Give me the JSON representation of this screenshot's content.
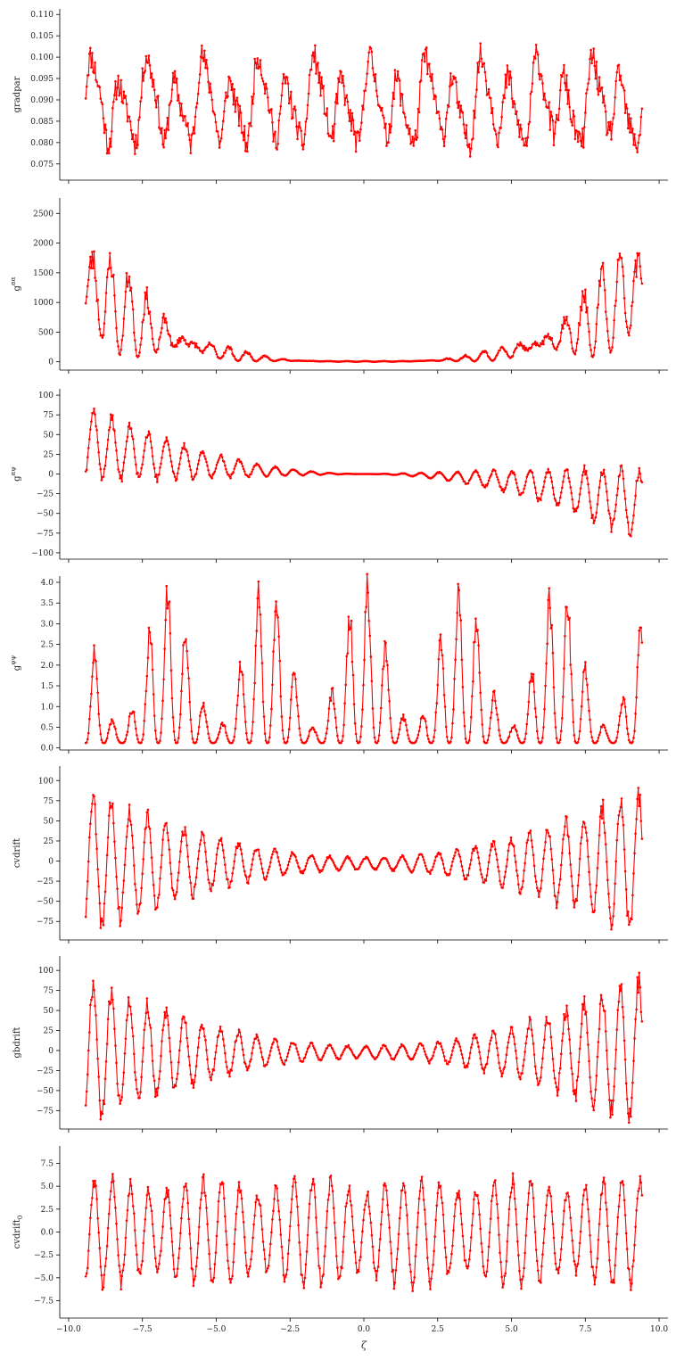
{
  "figure": {
    "xlabel": "ζ",
    "color": "#ff0000"
  },
  "chart_data": [
    {
      "type": "line",
      "ylabel_main": "gradpar",
      "ylabel_sup": "",
      "ylabel_sub": "",
      "xlim": [
        -10.3,
        10.3
      ],
      "ylim": [
        0.0712,
        0.1113
      ],
      "xticks": [
        -10.0,
        -7.5,
        -5.0,
        -2.5,
        0.0,
        2.5,
        5.0,
        7.5,
        10.0
      ],
      "yticks": [
        0.075,
        0.08,
        0.085,
        0.09,
        0.095,
        0.1,
        0.105,
        0.11
      ],
      "gen": {
        "kind": "gradpar",
        "x0": -9.42,
        "x1": 9.42,
        "n": 600,
        "mean": 0.089,
        "amp": 0.013,
        "mod": 0.003
      }
    },
    {
      "type": "line",
      "ylabel_main": "g",
      "ylabel_sup": "αα",
      "ylabel_sub": "",
      "xlim": [
        -10.3,
        10.3
      ],
      "ylim": [
        -140,
        2760
      ],
      "xticks": [
        -10.0,
        -7.5,
        -5.0,
        -2.5,
        0.0,
        2.5,
        5.0,
        7.5,
        10.0
      ],
      "yticks": [
        0,
        500,
        1000,
        1500,
        2000,
        2500
      ],
      "gen": {
        "kind": "gaa",
        "x0": -9.42,
        "x1": 9.42,
        "n": 600,
        "peak": 2620
      }
    },
    {
      "type": "line",
      "ylabel_main": "g",
      "ylabel_sup": "αψ",
      "ylabel_sub": "",
      "xlim": [
        -10.3,
        10.3
      ],
      "ylim": [
        -108,
        108
      ],
      "xticks": [
        -10.0,
        -7.5,
        -5.0,
        -2.5,
        0.0,
        2.5,
        5.0,
        7.5,
        10.0
      ],
      "yticks": [
        -100,
        -75,
        -50,
        -25,
        0,
        25,
        50,
        75,
        100
      ],
      "gen": {
        "kind": "gap",
        "x0": -9.42,
        "x1": 9.42,
        "n": 600,
        "peak": 97
      }
    },
    {
      "type": "line",
      "ylabel_main": "g",
      "ylabel_sup": "ψψ",
      "ylabel_sub": "",
      "xlim": [
        -10.3,
        10.3
      ],
      "ylim": [
        -0.05,
        4.15
      ],
      "xticks": [
        -10.0,
        -7.5,
        -5.0,
        -2.5,
        0.0,
        2.5,
        5.0,
        7.5,
        10.0
      ],
      "yticks": [
        0.0,
        0.5,
        1.0,
        1.5,
        2.0,
        2.5,
        3.0,
        3.5,
        4.0
      ],
      "gen": {
        "kind": "gpp",
        "x0": -9.42,
        "x1": 9.42,
        "n": 600,
        "min": 0.12,
        "max": 3.9
      }
    },
    {
      "type": "line",
      "ylabel_main": "cvdrift",
      "ylabel_sup": "",
      "ylabel_sub": "",
      "xlim": [
        -10.3,
        10.3
      ],
      "ylim": [
        -98,
        118
      ],
      "xticks": [
        -10.0,
        -7.5,
        -5.0,
        -2.5,
        0.0,
        2.5,
        5.0,
        7.5,
        10.0
      ],
      "yticks": [
        -75,
        -50,
        -25,
        0,
        25,
        50,
        75,
        100
      ],
      "gen": {
        "kind": "drift",
        "x0": -9.42,
        "x1": 9.42,
        "n": 600,
        "peak": 110,
        "offset": -3
      }
    },
    {
      "type": "line",
      "ylabel_main": "gbdrift",
      "ylabel_sup": "",
      "ylabel_sub": "",
      "xlim": [
        -10.3,
        10.3
      ],
      "ylim": [
        -98,
        118
      ],
      "xticks": [
        -10.0,
        -7.5,
        -5.0,
        -2.5,
        0.0,
        2.5,
        5.0,
        7.5,
        10.0
      ],
      "yticks": [
        -75,
        -50,
        -25,
        0,
        25,
        50,
        75,
        100
      ],
      "gen": {
        "kind": "drift",
        "x0": -9.42,
        "x1": 9.42,
        "n": 600,
        "peak": 110,
        "offset": -2
      }
    },
    {
      "type": "line",
      "ylabel_main": "cvdrift",
      "ylabel_sup": "",
      "ylabel_sub": "0",
      "xlim": [
        -10.3,
        10.3
      ],
      "ylim": [
        -9.4,
        9.4
      ],
      "xticks": [
        -10.0,
        -7.5,
        -5.0,
        -2.5,
        0.0,
        2.5,
        5.0,
        7.5,
        10.0
      ],
      "yticks": [
        -7.5,
        -5.0,
        -2.5,
        0.0,
        2.5,
        5.0,
        7.5
      ],
      "xticklabels": [
        "−10.0",
        "−7.5",
        "−5.0",
        "−2.5",
        "0.0",
        "2.5",
        "5.0",
        "7.5",
        "10.0"
      ],
      "gen": {
        "kind": "drift0",
        "x0": -9.42,
        "x1": 9.42,
        "n": 600,
        "peak": 8.5
      }
    }
  ]
}
